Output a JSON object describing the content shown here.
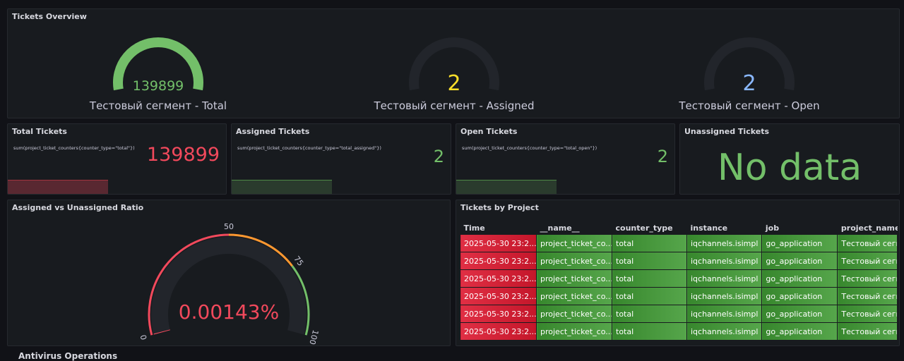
{
  "overview": {
    "title": "Tickets Overview",
    "gauges": [
      {
        "value": "139899",
        "label": "Тестовый сегмент - Total"
      },
      {
        "value": "2",
        "label": "Тестовый сегмент - Assigned"
      },
      {
        "value": "2",
        "label": "Тестовый сегмент - Open"
      }
    ]
  },
  "stats": [
    {
      "title": "Total Tickets",
      "query": "sum(project_ticket_counters{counter_type=\"total\"})",
      "value": "139899"
    },
    {
      "title": "Assigned Tickets",
      "query": "sum(project_ticket_counters{counter_type=\"total_assigned\"})",
      "value": "2"
    },
    {
      "title": "Open Tickets",
      "query": "sum(project_ticket_counters{counter_type=\"total_open\"})",
      "value": "2"
    },
    {
      "title": "Unassigned Tickets",
      "value": "No data"
    }
  ],
  "ratio": {
    "title": "Assigned vs Unassigned Ratio",
    "value": "0.00143%",
    "ticks": [
      "0",
      "50",
      "75",
      "100"
    ]
  },
  "table": {
    "title": "Tickets by Project",
    "headers": [
      "Time",
      "__name__",
      "counter_type",
      "instance",
      "job",
      "project_name"
    ],
    "rows": [
      [
        "2025-05-30 23:2...",
        "project_ticket_co...",
        "total",
        "iqchannels.isimpl",
        "go_application",
        "Тестовый сегме"
      ],
      [
        "2025-05-30 23:2...",
        "project_ticket_co...",
        "total",
        "iqchannels.isimpl",
        "go_application",
        "Тестовый сегме"
      ],
      [
        "2025-05-30 23:2...",
        "project_ticket_co...",
        "total",
        "iqchannels.isimpl",
        "go_application",
        "Тестовый сегме"
      ],
      [
        "2025-05-30 23:2...",
        "project_ticket_co...",
        "total",
        "iqchannels.isimpl",
        "go_application",
        "Тестовый сегме"
      ],
      [
        "2025-05-30 23:2...",
        "project_ticket_co...",
        "total",
        "iqchannels.isimpl",
        "go_application",
        "Тестовый сегме"
      ],
      [
        "2025-05-30 23:2...",
        "project_ticket_co...",
        "total",
        "iqchannels.isimpl",
        "go_application",
        "Тестовый сегме"
      ]
    ]
  },
  "next_section": "Antivirus Operations"
}
